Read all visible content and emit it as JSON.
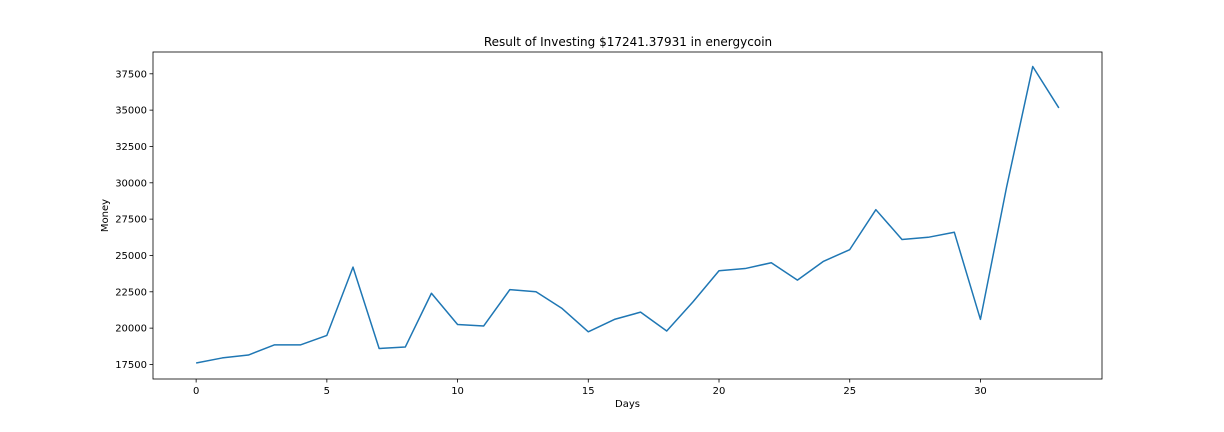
{
  "chart_data": {
    "type": "line",
    "title": "Result of Investing $17241.37931 in energycoin",
    "xlabel": "Days",
    "ylabel": "Money",
    "xlim": [
      -1.65,
      34.65
    ],
    "ylim": [
      16500,
      39000
    ],
    "xticks": [
      0,
      5,
      10,
      15,
      20,
      25,
      30
    ],
    "yticks": [
      17500,
      20000,
      22500,
      25000,
      27500,
      30000,
      32500,
      35000,
      37500
    ],
    "grid": false,
    "legend": "none",
    "series": [
      {
        "color": "#1f77b4",
        "x": [
          0,
          1,
          2,
          3,
          4,
          5,
          6,
          7,
          8,
          9,
          10,
          11,
          12,
          13,
          14,
          15,
          16,
          17,
          18,
          19,
          20,
          21,
          22,
          23,
          24,
          25,
          26,
          27,
          28,
          29,
          30,
          31,
          32,
          33
        ],
        "values": [
          17600,
          17950,
          18150,
          18850,
          18850,
          19500,
          24200,
          18600,
          18700,
          22400,
          20250,
          20150,
          22650,
          22500,
          21350,
          19750,
          20600,
          21100,
          19800,
          21800,
          23950,
          24100,
          24500,
          23300,
          24600,
          25400,
          28150,
          26100,
          26250,
          26600,
          20600,
          29700,
          38000,
          35150
        ]
      }
    ]
  }
}
